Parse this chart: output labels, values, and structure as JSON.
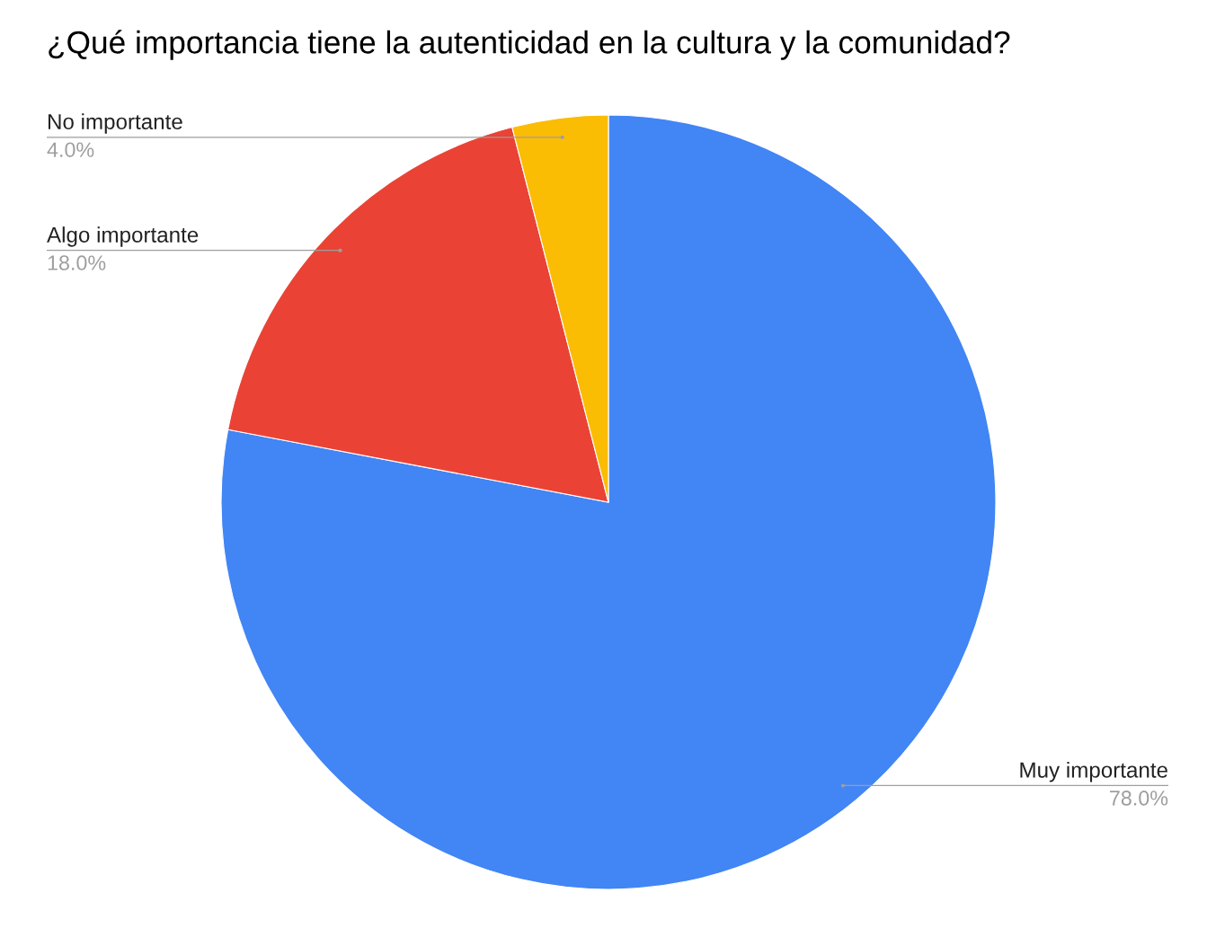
{
  "chart_data": {
    "type": "pie",
    "title": "¿Qué importancia tiene la autenticidad en la cultura y la comunidad?",
    "categories": [
      "Muy importante",
      "Algo importante",
      "No importante"
    ],
    "values": [
      78,
      18,
      4
    ],
    "colors": [
      "#4285f4",
      "#ea4335",
      "#fbbc04"
    ],
    "value_labels": [
      "78.0%",
      "18.0%",
      "4.0%"
    ]
  }
}
